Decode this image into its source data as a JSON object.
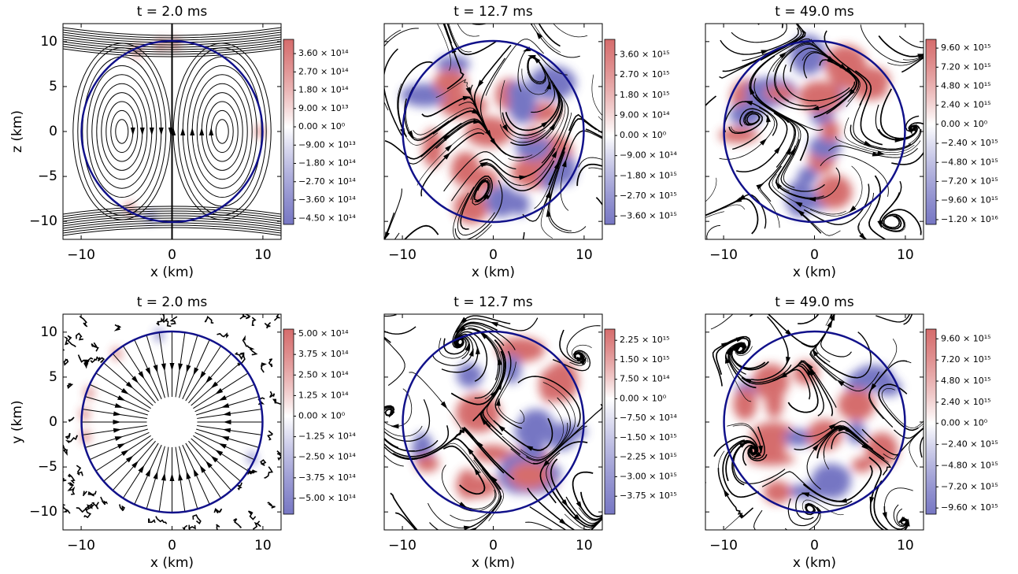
{
  "chart_data": [
    {
      "type": "streamplot",
      "title": "t = 2.0 ms",
      "xlabel": "x (km)",
      "ylabel": "z (km)",
      "xlim": [
        -12,
        12
      ],
      "ylim": [
        -12,
        12
      ],
      "xticks": [
        {
          "value": -10,
          "label": "−10"
        },
        0,
        10
      ],
      "yticks": [
        {
          "value": -10,
          "label": "−10"
        },
        {
          "value": -5,
          "label": "−5"
        },
        0,
        5,
        10
      ],
      "ytick_labels": true,
      "colorbar_colors": [
        "#4a4ab0",
        "#ffffff",
        "#c83c3c"
      ],
      "clim": [
        -480000000000000.0,
        430000000000000.0
      ],
      "colorbar_ticks": [
        {
          "value": 360000000000000.0,
          "label": "3.60 × 10¹⁴"
        },
        {
          "value": 270000000000000.0,
          "label": "2.70 × 10¹⁴"
        },
        {
          "value": 180000000000000.0,
          "label": "1.80 × 10¹⁴"
        },
        {
          "value": 90000000000000.0,
          "label": "9.00 × 10¹³"
        },
        {
          "value": 0,
          "label": "0.00 × 10⁰"
        },
        {
          "value": -90000000000000.0,
          "label": "−9.00 × 10¹³"
        },
        {
          "value": -180000000000000.0,
          "label": "−1.80 × 10¹⁴"
        },
        {
          "value": -270000000000000.0,
          "label": "−2.70 × 10¹⁴"
        },
        {
          "value": -360000000000000.0,
          "label": "−3.60 × 10¹⁴"
        },
        {
          "value": -450000000000000.0,
          "label": "−4.50 × 10¹⁴"
        }
      ]
    },
    {
      "type": "streamplot",
      "title": "t = 12.7 ms",
      "xlabel": "x (km)",
      "xlim": [
        -12,
        12
      ],
      "ylim": [
        -12,
        12
      ],
      "xticks": [
        {
          "value": -10,
          "label": "−10"
        },
        0,
        10
      ],
      "yticks": [
        -10,
        -5,
        0,
        5,
        10
      ],
      "ytick_labels": false,
      "colorbar_colors": [
        "#4a4ab0",
        "#ffffff",
        "#c83c3c"
      ],
      "clim": [
        -3970000000000000.0,
        4290000000000000.0
      ],
      "colorbar_ticks": [
        {
          "value": 3600000000000000.0,
          "label": "3.60 × 10¹⁵"
        },
        {
          "value": 2700000000000000.0,
          "label": "2.70 × 10¹⁵"
        },
        {
          "value": 1800000000000000.0,
          "label": "1.80 × 10¹⁵"
        },
        {
          "value": 900000000000000.0,
          "label": "9.00 × 10¹⁴"
        },
        {
          "value": 0,
          "label": "0.00 × 10⁰"
        },
        {
          "value": -900000000000000.0,
          "label": "−9.00 × 10¹⁴"
        },
        {
          "value": -1800000000000000.0,
          "label": "−1.80 × 10¹⁵"
        },
        {
          "value": -2700000000000000.0,
          "label": "−2.70 × 10¹⁵"
        },
        {
          "value": -3600000000000000.0,
          "label": "−3.60 × 10¹⁵"
        }
      ]
    },
    {
      "type": "streamplot",
      "title": "t = 49.0 ms",
      "xlabel": "x (km)",
      "xlim": [
        -12,
        12
      ],
      "ylim": [
        -12,
        12
      ],
      "xticks": [
        {
          "value": -10,
          "label": "−10"
        },
        0,
        10
      ],
      "yticks": [
        -10,
        -5,
        0,
        5,
        10
      ],
      "ytick_labels": false,
      "colorbar_colors": [
        "#4a4ab0",
        "#ffffff",
        "#c83c3c"
      ],
      "clim": [
        -1.26e+16,
        1.07e+16
      ],
      "colorbar_ticks": [
        {
          "value": 9600000000000000.0,
          "label": "9.60 × 10¹⁵"
        },
        {
          "value": 7200000000000000.0,
          "label": "7.20 × 10¹⁵"
        },
        {
          "value": 4800000000000000.0,
          "label": "4.80 × 10¹⁵"
        },
        {
          "value": 2400000000000000.0,
          "label": "2.40 × 10¹⁵"
        },
        {
          "value": 0,
          "label": "0.00 × 10⁰"
        },
        {
          "value": -2400000000000000.0,
          "label": "−2.40 × 10¹⁵"
        },
        {
          "value": -4800000000000000.0,
          "label": "−4.80 × 10¹⁵"
        },
        {
          "value": -7200000000000000.0,
          "label": "−7.20 × 10¹⁵"
        },
        {
          "value": -9600000000000000.0,
          "label": "−9.60 × 10¹⁵"
        },
        {
          "value": -1.2e+16,
          "label": "−1.20 × 10¹⁶"
        }
      ]
    },
    {
      "type": "streamplot",
      "title": "t = 2.0 ms",
      "xlabel": "x (km)",
      "ylabel": "y (km)",
      "xlim": [
        -12,
        12
      ],
      "ylim": [
        -12,
        12
      ],
      "xticks": [
        {
          "value": -10,
          "label": "−10"
        },
        0,
        10
      ],
      "yticks": [
        {
          "value": -10,
          "label": "−10"
        },
        {
          "value": -5,
          "label": "−5"
        },
        0,
        5,
        10
      ],
      "ytick_labels": true,
      "colorbar_colors": [
        "#4a4ab0",
        "#ffffff",
        "#c83c3c"
      ],
      "clim": [
        -596000000000000.0,
        529000000000000.0
      ],
      "colorbar_ticks": [
        {
          "value": 500000000000000.0,
          "label": "5.00 × 10¹⁴"
        },
        {
          "value": 375000000000000.0,
          "label": "3.75 × 10¹⁴"
        },
        {
          "value": 250000000000000.0,
          "label": "2.50 × 10¹⁴"
        },
        {
          "value": 125000000000000.0,
          "label": "1.25 × 10¹⁴"
        },
        {
          "value": 0,
          "label": "0.00 × 10⁰"
        },
        {
          "value": -125000000000000.0,
          "label": "−1.25 × 10¹⁴"
        },
        {
          "value": -250000000000000.0,
          "label": "−2.50 × 10¹⁴"
        },
        {
          "value": -375000000000000.0,
          "label": "−3.75 × 10¹⁴"
        },
        {
          "value": -500000000000000.0,
          "label": "−5.00 × 10¹⁴"
        }
      ]
    },
    {
      "type": "streamplot",
      "title": "t = 12.7 ms",
      "xlabel": "x (km)",
      "xlim": [
        -12,
        12
      ],
      "ylim": [
        -12,
        12
      ],
      "xticks": [
        {
          "value": -10,
          "label": "−10"
        },
        0,
        10
      ],
      "yticks": [
        -10,
        -5,
        0,
        5,
        10
      ],
      "ytick_labels": false,
      "colorbar_colors": [
        "#4a4ab0",
        "#ffffff",
        "#c83c3c"
      ],
      "clim": [
        -4440000000000000.0,
        2680000000000000.0
      ],
      "colorbar_ticks": [
        {
          "value": 2250000000000000.0,
          "label": "2.25 × 10¹⁵"
        },
        {
          "value": 1500000000000000.0,
          "label": "1.50 × 10¹⁵"
        },
        {
          "value": 750000000000000.0,
          "label": "7.50 × 10¹⁴"
        },
        {
          "value": 0,
          "label": "0.00 × 10⁰"
        },
        {
          "value": -750000000000000.0,
          "label": "−7.50 × 10¹⁴"
        },
        {
          "value": -1500000000000000.0,
          "label": "−1.50 × 10¹⁵"
        },
        {
          "value": -2250000000000000.0,
          "label": "−2.25 × 10¹⁵"
        },
        {
          "value": -3000000000000000.0,
          "label": "−3.00 × 10¹⁵"
        },
        {
          "value": -3750000000000000.0,
          "label": "−3.75 × 10¹⁵"
        }
      ]
    },
    {
      "type": "streamplot",
      "title": "t = 49.0 ms",
      "xlabel": "x (km)",
      "xlim": [
        -12,
        12
      ],
      "ylim": [
        -12,
        12
      ],
      "xticks": [
        {
          "value": -10,
          "label": "−10"
        },
        0,
        10
      ],
      "yticks": [
        -10,
        -5,
        0,
        5,
        10
      ],
      "ytick_labels": false,
      "colorbar_colors": [
        "#4a4ab0",
        "#ffffff",
        "#c83c3c"
      ],
      "clim": [
        -1.03e+16,
        1.07e+16
      ],
      "colorbar_ticks": [
        {
          "value": 9600000000000000.0,
          "label": "9.60 × 10¹⁵"
        },
        {
          "value": 7200000000000000.0,
          "label": "7.20 × 10¹⁵"
        },
        {
          "value": 4800000000000000.0,
          "label": "4.80 × 10¹⁵"
        },
        {
          "value": 2400000000000000.0,
          "label": "2.40 × 10¹⁵"
        },
        {
          "value": 0,
          "label": "0.00 × 10⁰"
        },
        {
          "value": -2400000000000000.0,
          "label": "−2.40 × 10¹⁵"
        },
        {
          "value": -4800000000000000.0,
          "label": "−4.80 × 10¹⁵"
        },
        {
          "value": -7200000000000000.0,
          "label": "−7.20 × 10¹⁵"
        },
        {
          "value": -9600000000000000.0,
          "label": "−9.60 × 10¹⁵"
        }
      ]
    }
  ]
}
